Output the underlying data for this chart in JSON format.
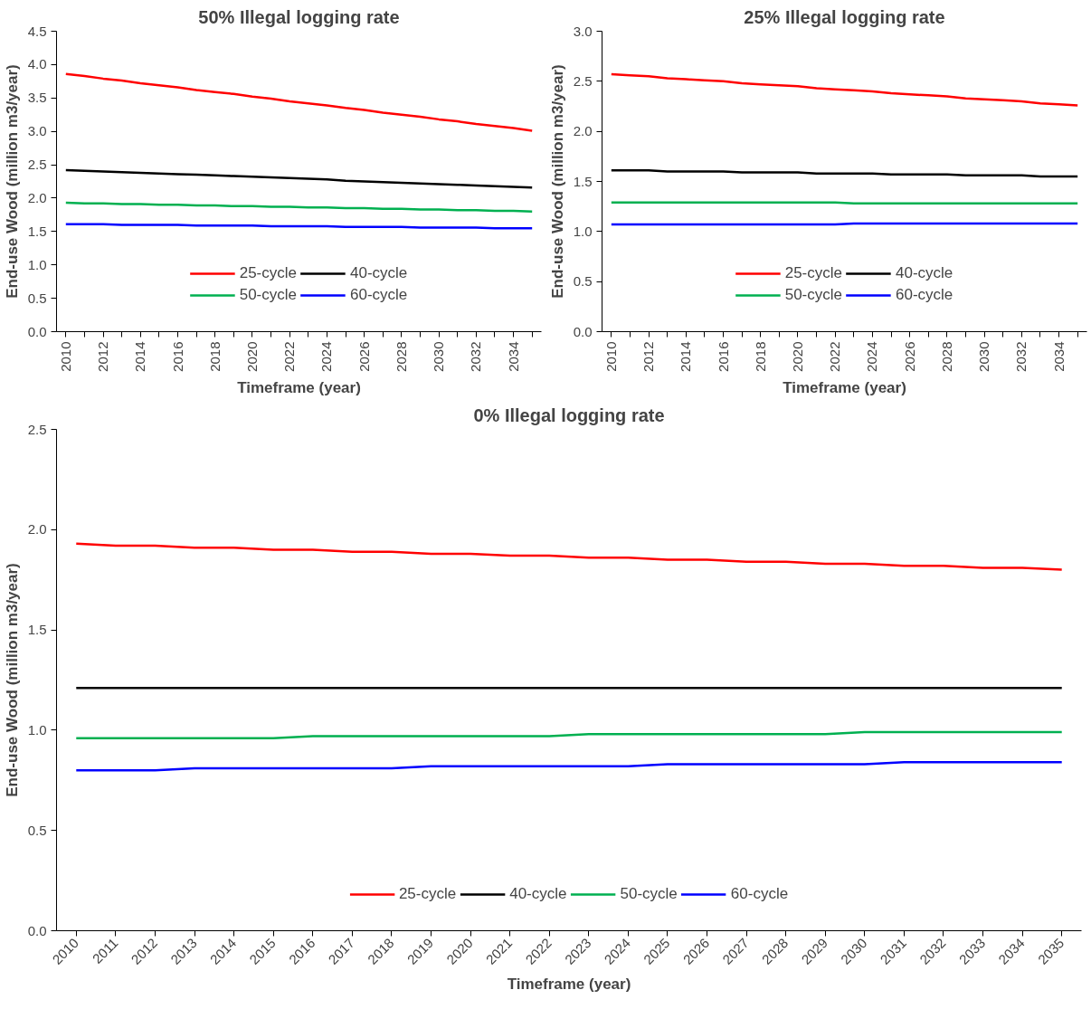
{
  "chart_data": [
    {
      "type": "line",
      "title": "50% Illegal logging rate",
      "xlabel": "Timeframe (year)",
      "ylabel": "End-use Wood (million m3/year)",
      "categories": [
        "2010",
        null,
        "2012",
        null,
        "2014",
        null,
        "2016",
        null,
        "2018",
        null,
        "2020",
        null,
        "2022",
        null,
        "2024",
        null,
        "2026",
        null,
        "2028",
        null,
        "2030",
        null,
        "2032",
        null,
        "2034",
        null
      ],
      "ylim": [
        0,
        4.5
      ],
      "yticks": [
        {
          "value": 0,
          "label": "0.0"
        },
        {
          "value": 0.5,
          "label": "0.5"
        },
        {
          "value": 1,
          "label": "1.0"
        },
        {
          "value": 1.5,
          "label": "1.5"
        },
        {
          "value": 2,
          "label": "2.0"
        },
        {
          "value": 2.5,
          "label": "2.5"
        },
        {
          "value": 3,
          "label": "3.0"
        },
        {
          "value": 3.5,
          "label": "3.5"
        },
        {
          "value": 4,
          "label": "4.0"
        },
        {
          "value": 4.5,
          "label": "4.5"
        }
      ],
      "grid": false,
      "legend": "bottom",
      "marker": "none",
      "line_style": "solid",
      "series": [
        {
          "name": "25-cycle",
          "color": "#ff0000",
          "values": [
            3.86,
            3.83,
            3.79,
            3.76,
            3.72,
            3.69,
            3.66,
            3.62,
            3.59,
            3.56,
            3.52,
            3.49,
            3.45,
            3.42,
            3.39,
            3.35,
            3.32,
            3.28,
            3.25,
            3.22,
            3.18,
            3.15,
            3.11,
            3.08,
            3.05,
            3.01
          ]
        },
        {
          "name": "40-cycle",
          "color": "#000000",
          "values": [
            2.42,
            2.41,
            2.4,
            2.39,
            2.38,
            2.37,
            2.36,
            2.35,
            2.34,
            2.33,
            2.32,
            2.31,
            2.3,
            2.29,
            2.28,
            2.26,
            2.25,
            2.24,
            2.23,
            2.22,
            2.21,
            2.2,
            2.19,
            2.18,
            2.17,
            2.16
          ]
        },
        {
          "name": "50-cycle",
          "color": "#00b050",
          "values": [
            1.93,
            1.92,
            1.92,
            1.91,
            1.91,
            1.9,
            1.9,
            1.89,
            1.89,
            1.88,
            1.88,
            1.87,
            1.87,
            1.86,
            1.86,
            1.85,
            1.85,
            1.84,
            1.84,
            1.83,
            1.83,
            1.82,
            1.82,
            1.81,
            1.81,
            1.8
          ]
        },
        {
          "name": "60-cycle",
          "color": "#0000ff",
          "values": [
            1.61,
            1.61,
            1.61,
            1.6,
            1.6,
            1.6,
            1.6,
            1.59,
            1.59,
            1.59,
            1.59,
            1.58,
            1.58,
            1.58,
            1.58,
            1.57,
            1.57,
            1.57,
            1.57,
            1.56,
            1.56,
            1.56,
            1.56,
            1.55,
            1.55,
            1.55
          ]
        }
      ]
    },
    {
      "type": "line",
      "title": "25% Illegal logging rate",
      "xlabel": "Timeframe (year)",
      "ylabel": "End-use Wood (million m3/year)",
      "categories": [
        "2010",
        null,
        "2012",
        null,
        "2014",
        null,
        "2016",
        null,
        "2018",
        null,
        "2020",
        null,
        "2022",
        null,
        "2024",
        null,
        "2026",
        null,
        "2028",
        null,
        "2030",
        null,
        "2032",
        null,
        "2034",
        null
      ],
      "ylim": [
        0,
        3
      ],
      "yticks": [
        {
          "value": 0,
          "label": "0.0"
        },
        {
          "value": 0.5,
          "label": "0.5"
        },
        {
          "value": 1,
          "label": "1.0"
        },
        {
          "value": 1.5,
          "label": "1.5"
        },
        {
          "value": 2,
          "label": "2.0"
        },
        {
          "value": 2.5,
          "label": "2.5"
        },
        {
          "value": 3,
          "label": "3.0"
        }
      ],
      "grid": false,
      "legend": "bottom",
      "marker": "none",
      "line_style": "solid",
      "series": [
        {
          "name": "25-cycle",
          "color": "#ff0000",
          "values": [
            2.57,
            2.56,
            2.55,
            2.53,
            2.52,
            2.51,
            2.5,
            2.48,
            2.47,
            2.46,
            2.45,
            2.43,
            2.42,
            2.41,
            2.4,
            2.38,
            2.37,
            2.36,
            2.35,
            2.33,
            2.32,
            2.31,
            2.3,
            2.28,
            2.27,
            2.26
          ]
        },
        {
          "name": "40-cycle",
          "color": "#000000",
          "values": [
            1.61,
            1.61,
            1.61,
            1.6,
            1.6,
            1.6,
            1.6,
            1.59,
            1.59,
            1.59,
            1.59,
            1.58,
            1.58,
            1.58,
            1.58,
            1.57,
            1.57,
            1.57,
            1.57,
            1.56,
            1.56,
            1.56,
            1.56,
            1.55,
            1.55,
            1.55
          ]
        },
        {
          "name": "50-cycle",
          "color": "#00b050",
          "values": [
            1.29,
            1.29,
            1.29,
            1.29,
            1.29,
            1.29,
            1.29,
            1.29,
            1.29,
            1.29,
            1.29,
            1.29,
            1.29,
            1.28,
            1.28,
            1.28,
            1.28,
            1.28,
            1.28,
            1.28,
            1.28,
            1.28,
            1.28,
            1.28,
            1.28,
            1.28
          ]
        },
        {
          "name": "60-cycle",
          "color": "#0000ff",
          "values": [
            1.07,
            1.07,
            1.07,
            1.07,
            1.07,
            1.07,
            1.07,
            1.07,
            1.07,
            1.07,
            1.07,
            1.07,
            1.07,
            1.08,
            1.08,
            1.08,
            1.08,
            1.08,
            1.08,
            1.08,
            1.08,
            1.08,
            1.08,
            1.08,
            1.08,
            1.08
          ]
        }
      ]
    },
    {
      "type": "line",
      "title": "0% Illegal logging rate",
      "xlabel": "Timeframe (year)",
      "ylabel": "End-use Wood (million m3/year)",
      "categories": [
        "2010",
        "2011",
        "2012",
        "2013",
        "2014",
        "2015",
        "2016",
        "2017",
        "2018",
        "2019",
        "2020",
        "2021",
        "2022",
        "2023",
        "2024",
        "2025",
        "2026",
        "2027",
        "2028",
        "2029",
        "2030",
        "2031",
        "2032",
        "2033",
        "2034",
        "2035"
      ],
      "ylim": [
        0,
        2.5
      ],
      "yticks": [
        {
          "value": 0,
          "label": "0.0"
        },
        {
          "value": 0.5,
          "label": "0.5"
        },
        {
          "value": 1,
          "label": "1.0"
        },
        {
          "value": 1.5,
          "label": "1.5"
        },
        {
          "value": 2,
          "label": "2.0"
        },
        {
          "value": 2.5,
          "label": "2.5"
        }
      ],
      "grid": false,
      "legend": "bottom",
      "marker": "none",
      "line_style": "solid",
      "series": [
        {
          "name": "25-cycle",
          "color": "#ff0000",
          "values": [
            1.93,
            1.92,
            1.92,
            1.91,
            1.91,
            1.9,
            1.9,
            1.89,
            1.89,
            1.88,
            1.88,
            1.87,
            1.87,
            1.86,
            1.86,
            1.85,
            1.85,
            1.84,
            1.84,
            1.83,
            1.83,
            1.82,
            1.82,
            1.81,
            1.81,
            1.8
          ]
        },
        {
          "name": "40-cycle",
          "color": "#000000",
          "values": [
            1.21,
            1.21,
            1.21,
            1.21,
            1.21,
            1.21,
            1.21,
            1.21,
            1.21,
            1.21,
            1.21,
            1.21,
            1.21,
            1.21,
            1.21,
            1.21,
            1.21,
            1.21,
            1.21,
            1.21,
            1.21,
            1.21,
            1.21,
            1.21,
            1.21,
            1.21
          ]
        },
        {
          "name": "50-cycle",
          "color": "#00b050",
          "values": [
            0.96,
            0.96,
            0.96,
            0.96,
            0.96,
            0.96,
            0.97,
            0.97,
            0.97,
            0.97,
            0.97,
            0.97,
            0.97,
            0.98,
            0.98,
            0.98,
            0.98,
            0.98,
            0.98,
            0.98,
            0.99,
            0.99,
            0.99,
            0.99,
            0.99,
            0.99
          ]
        },
        {
          "name": "60-cycle",
          "color": "#0000ff",
          "values": [
            0.8,
            0.8,
            0.8,
            0.81,
            0.81,
            0.81,
            0.81,
            0.81,
            0.81,
            0.82,
            0.82,
            0.82,
            0.82,
            0.82,
            0.82,
            0.83,
            0.83,
            0.83,
            0.83,
            0.83,
            0.83,
            0.84,
            0.84,
            0.84,
            0.84,
            0.84
          ]
        }
      ]
    }
  ]
}
